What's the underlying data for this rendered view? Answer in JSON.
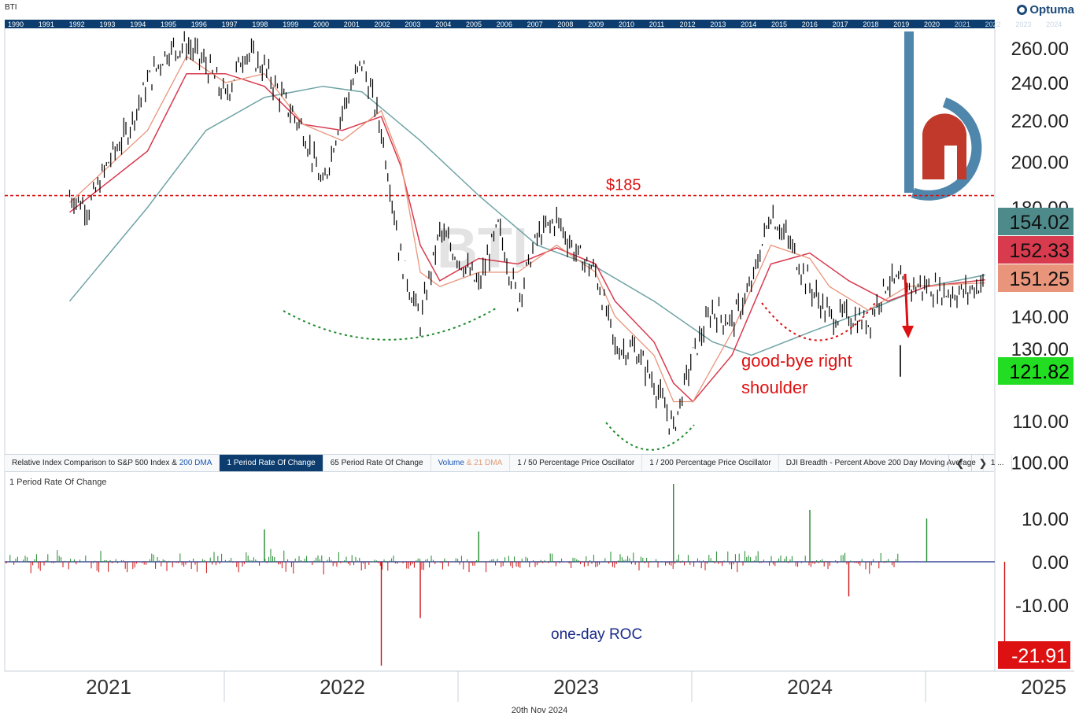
{
  "header": {
    "symbol": "BTI",
    "logo_text": "Optuma",
    "decade_years": [
      "1990",
      "1991",
      "1992",
      "1993",
      "1994",
      "1995",
      "1996",
      "1997",
      "1998",
      "1999",
      "2000",
      "2001",
      "2002",
      "2003",
      "2004",
      "2005",
      "2006",
      "2007",
      "2008",
      "2009",
      "2010",
      "2011",
      "2012",
      "2013",
      "2014",
      "2015",
      "2016",
      "2017",
      "2018",
      "2019",
      "2020",
      "2021",
      "2022",
      "2023",
      "2024"
    ]
  },
  "tabs": [
    {
      "label": "Relative Index Comparison to S&P 500 Index & ",
      "suffix": "200 DMA",
      "active": false
    },
    {
      "label": "1 Period Rate Of Change",
      "active": true
    },
    {
      "label": "65 Period Rate Of Change",
      "active": false
    },
    {
      "label": "Volume",
      "suffix": "& 21 DMA",
      "active": false
    },
    {
      "label": "1 / 50 Percentage Price Oscillator",
      "active": false
    },
    {
      "label": "1 / 200 Percentage Price Oscillator",
      "active": false
    },
    {
      "label": "DJI Breadth - Percent Above 200 Day Moving Average",
      "active": false
    },
    {
      "label": "1 ...",
      "active": false
    }
  ],
  "tab_nav": {
    "prev": "❮",
    "next": "❯"
  },
  "footer_date": "20th Nov 2024",
  "chart_data": [
    {
      "type": "line",
      "title": "BTI",
      "x": [
        "2021",
        "2022",
        "2023",
        "2024",
        "2025"
      ],
      "ylim": [
        100,
        265
      ],
      "y_ticks": [
        "260.00",
        "240.00",
        "220.00",
        "200.00",
        "180.00",
        "140.00",
        "130.00",
        "110.00",
        "100.00"
      ],
      "price_labels": [
        {
          "value": "154.02",
          "color": "#4f8a8b"
        },
        {
          "value": "152.33",
          "color": "#d83a4e"
        },
        {
          "value": "151.25",
          "color": "#e9957b"
        },
        {
          "value": "121.82",
          "color": "#22dd22"
        }
      ],
      "price_path": [
        [
          "2020-11",
          185
        ],
        [
          "2020-12",
          180
        ],
        [
          "2021-01",
          200
        ],
        [
          "2021-02",
          215
        ],
        [
          "2021-03",
          240
        ],
        [
          "2021-04",
          258
        ],
        [
          "2021-05",
          262
        ],
        [
          "2021-06",
          250
        ],
        [
          "2021-07",
          232
        ],
        [
          "2021-08",
          258
        ],
        [
          "2021-09",
          248
        ],
        [
          "2021-10",
          230
        ],
        [
          "2021-11",
          215
        ],
        [
          "2021-12",
          188
        ],
        [
          "2022-01",
          225
        ],
        [
          "2022-02",
          252
        ],
        [
          "2022-03",
          215
        ],
        [
          "2022-04",
          160
        ],
        [
          "2022-05",
          138
        ],
        [
          "2022-06",
          170
        ],
        [
          "2022-07",
          160
        ],
        [
          "2022-08",
          150
        ],
        [
          "2022-09",
          172
        ],
        [
          "2022-10",
          145
        ],
        [
          "2022-11",
          168
        ],
        [
          "2022-12",
          175
        ],
        [
          "2023-01",
          162
        ],
        [
          "2023-02",
          155
        ],
        [
          "2023-03",
          130
        ],
        [
          "2023-04",
          130
        ],
        [
          "2023-05",
          120
        ],
        [
          "2023-06",
          108
        ],
        [
          "2023-07",
          128
        ],
        [
          "2023-08",
          142
        ],
        [
          "2023-09",
          138
        ],
        [
          "2023-10",
          150
        ],
        [
          "2023-11",
          178
        ],
        [
          "2023-12",
          165
        ],
        [
          "2024-01",
          150
        ],
        [
          "2024-02",
          140
        ],
        [
          "2024-03",
          140
        ],
        [
          "2024-04",
          138
        ],
        [
          "2024-05",
          152
        ],
        [
          "2024-06",
          150
        ],
        [
          "2024-07",
          150
        ],
        [
          "2024-08",
          148
        ],
        [
          "2024-09",
          148
        ],
        [
          "2024-10",
          152
        ]
      ],
      "gap_bar": {
        "date": "2024-11",
        "high": 131,
        "low": 121.82
      },
      "ma_fast": [
        [
          "2020-11",
          182
        ],
        [
          "2021-03",
          215
        ],
        [
          "2021-05",
          255
        ],
        [
          "2021-07",
          240
        ],
        [
          "2021-09",
          245
        ],
        [
          "2021-11",
          218
        ],
        [
          "2022-01",
          210
        ],
        [
          "2022-03",
          225
        ],
        [
          "2022-04",
          200
        ],
        [
          "2022-05",
          155
        ],
        [
          "2022-06",
          150
        ],
        [
          "2022-08",
          155
        ],
        [
          "2022-10",
          155
        ],
        [
          "2022-12",
          165
        ],
        [
          "2023-02",
          155
        ],
        [
          "2023-03",
          140
        ],
        [
          "2023-05",
          128
        ],
        [
          "2023-06",
          115
        ],
        [
          "2023-07",
          115
        ],
        [
          "2023-09",
          135
        ],
        [
          "2023-11",
          165
        ],
        [
          "2024-01",
          160
        ],
        [
          "2024-02",
          150
        ],
        [
          "2024-04",
          142
        ],
        [
          "2024-06",
          150
        ],
        [
          "2024-10",
          151.25
        ]
      ],
      "ma_mid": [
        [
          "2020-11",
          178
        ],
        [
          "2021-03",
          205
        ],
        [
          "2021-05",
          245
        ],
        [
          "2021-07",
          245
        ],
        [
          "2021-09",
          238
        ],
        [
          "2021-11",
          218
        ],
        [
          "2022-01",
          215
        ],
        [
          "2022-03",
          222
        ],
        [
          "2022-04",
          198
        ],
        [
          "2022-05",
          165
        ],
        [
          "2022-06",
          152
        ],
        [
          "2022-08",
          160
        ],
        [
          "2022-10",
          158
        ],
        [
          "2022-12",
          164
        ],
        [
          "2023-02",
          158
        ],
        [
          "2023-03",
          145
        ],
        [
          "2023-05",
          132
        ],
        [
          "2023-06",
          120
        ],
        [
          "2023-07",
          115
        ],
        [
          "2023-09",
          128
        ],
        [
          "2023-11",
          158
        ],
        [
          "2024-01",
          162
        ],
        [
          "2024-03",
          152
        ],
        [
          "2024-05",
          145
        ],
        [
          "2024-07",
          150
        ],
        [
          "2024-10",
          152.33
        ]
      ],
      "ma_slow": [
        [
          "2020-11",
          145
        ],
        [
          "2021-03",
          180
        ],
        [
          "2021-06",
          215
        ],
        [
          "2021-09",
          232
        ],
        [
          "2021-12",
          238
        ],
        [
          "2022-02",
          235
        ],
        [
          "2022-05",
          210
        ],
        [
          "2022-08",
          185
        ],
        [
          "2022-11",
          165
        ],
        [
          "2023-02",
          157
        ],
        [
          "2023-05",
          145
        ],
        [
          "2023-08",
          132
        ],
        [
          "2023-10",
          128
        ],
        [
          "2024-01",
          135
        ],
        [
          "2024-04",
          142
        ],
        [
          "2024-07",
          150
        ],
        [
          "2024-10",
          154.02
        ]
      ],
      "annotations": {
        "resistance_label": "$185",
        "resistance_value": 185,
        "shoulder_text_1": "good-bye right",
        "shoulder_text_2": "shoulder"
      }
    },
    {
      "type": "bar",
      "title": "1 Period Rate Of Change",
      "ylim": [
        -24,
        18
      ],
      "y_ticks": [
        "10.00",
        "0.00",
        "-10.00"
      ],
      "current_value": "-21.91",
      "annotation": "one-day ROC",
      "spikes": [
        {
          "date": "2021-09",
          "value": 7.5
        },
        {
          "date": "2022-03",
          "value": -24
        },
        {
          "date": "2022-05",
          "value": -13
        },
        {
          "date": "2022-08",
          "value": 7
        },
        {
          "date": "2023-06",
          "value": 18
        },
        {
          "date": "2024-01",
          "value": 12
        },
        {
          "date": "2024-03",
          "value": -8
        },
        {
          "date": "2024-07",
          "value": 10
        },
        {
          "date": "2024-11",
          "value": -21.91
        }
      ]
    }
  ],
  "x_axis_labels": [
    "2021",
    "2022",
    "2023",
    "2024",
    "2025"
  ],
  "colors": {
    "price": "#000000",
    "ma_fast": "#e9957b",
    "ma_mid": "#d83a4e",
    "ma_slow": "#6fa3a6",
    "resistance": "#dd1111",
    "arc_green": "#1e8a2c",
    "arc_red": "#dd1111",
    "roc_up": "#1e8a2c",
    "roc_down": "#cc1111",
    "zero_line": "#1a2a8a",
    "header_bar": "#0c3d6e"
  }
}
